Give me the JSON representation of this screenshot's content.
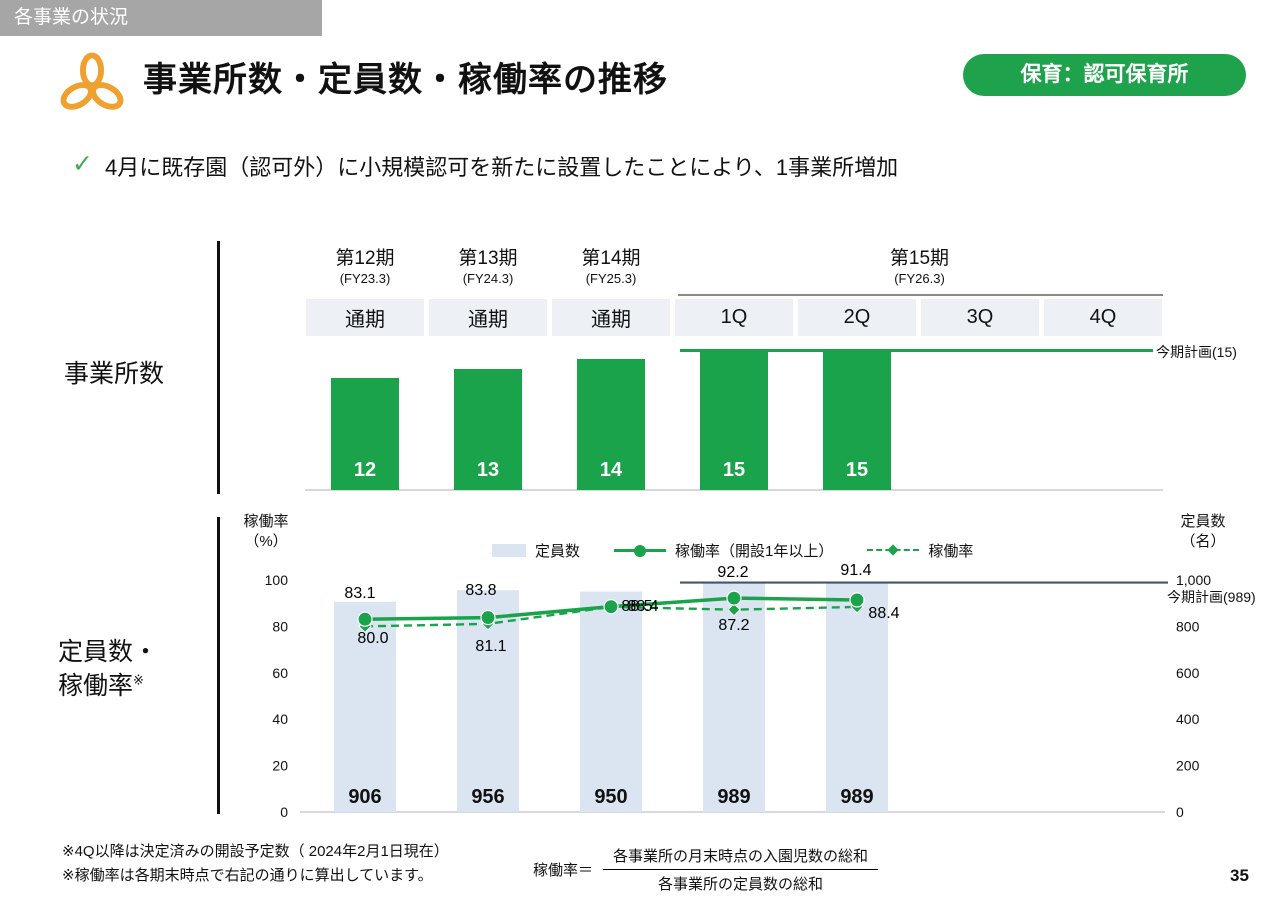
{
  "page": {
    "tag": "各事業の状況",
    "title": "事業所数・定員数・稼働率の推移",
    "badge": "保育：認可保育所",
    "bullet": "4月に既存園（認可外）に小規模認可を新たに設置したことにより、1事業所増加",
    "page_number": "35"
  },
  "colors": {
    "green": "#1aa34a",
    "bar_blue": "#dbe5f2",
    "plan_navy": "#44546a",
    "orange": "#efa02f",
    "tag_gray": "#a6a6a6",
    "check_green": "#3fae49",
    "header_bg": "#edf1f6"
  },
  "periods": [
    {
      "label": "第12期",
      "sub": "(FY23.3)"
    },
    {
      "label": "第13期",
      "sub": "(FY24.3)"
    },
    {
      "label": "第14期",
      "sub": "(FY25.3)"
    },
    {
      "label": "第15期",
      "sub": "(FY26.3)"
    }
  ],
  "columns": [
    "通期",
    "通期",
    "通期",
    "1Q",
    "2Q",
    "3Q",
    "4Q"
  ],
  "sections": {
    "offices": {
      "label": "事業所数"
    },
    "capacity": {
      "label_line1": "定員数・",
      "label_line2": "稼働率",
      "label_sup": "※",
      "left_axis_title": "稼働率",
      "left_axis_unit": "（%）",
      "right_axis_title": "定員数",
      "right_axis_unit": "（名）"
    }
  },
  "legend": [
    "定員数",
    "稼働率（開設1年以上）",
    "稼働率"
  ],
  "chart_data": [
    {
      "type": "bar",
      "title": "事業所数",
      "categories": [
        "第12期 通期",
        "第13期 通期",
        "第14期 通期",
        "第15期 1Q",
        "第15期 2Q",
        "第15期 3Q",
        "第15期 4Q"
      ],
      "values": [
        12,
        13,
        14,
        15,
        15,
        null,
        null
      ],
      "ylim": [
        0,
        15
      ],
      "plan": {
        "label": "今期計画(15)",
        "value": 15
      }
    },
    {
      "type": "combo",
      "title": "定員数・稼働率",
      "categories": [
        "第12期 通期",
        "第13期 通期",
        "第14期 通期",
        "第15期 1Q",
        "第15期 2Q"
      ],
      "series": [
        {
          "name": "定員数",
          "type": "bar",
          "axis": "right",
          "values": [
            906,
            956,
            950,
            989,
            989
          ]
        },
        {
          "name": "稼働率（開設1年以上）",
          "type": "line",
          "style": "solid",
          "axis": "left",
          "values": [
            83.1,
            83.8,
            88.5,
            92.2,
            91.4
          ]
        },
        {
          "name": "稼働率",
          "type": "line",
          "style": "dashed",
          "axis": "left",
          "values": [
            80.0,
            81.1,
            88.4,
            87.2,
            88.4
          ]
        }
      ],
      "left_axis": {
        "label": "稼働率（%）",
        "ticks": [
          0,
          20,
          40,
          60,
          80,
          100
        ],
        "range": [
          0,
          100
        ]
      },
      "right_axis": {
        "label": "定員数（名）",
        "ticks": [
          "0",
          "200",
          "400",
          "600",
          "800",
          "1,000"
        ],
        "tick_values": [
          0,
          200,
          400,
          600,
          800,
          1000
        ],
        "range": [
          0,
          1000
        ]
      },
      "plan": {
        "label": "今期計画(989)",
        "value": 989
      },
      "legend_position": "top"
    }
  ],
  "footnotes": {
    "note1": "※4Q以降は決定済みの開設予定数（ 2024年2月1日現在）",
    "note2": "※稼働率は各期末時点で右記の通りに算出しています。",
    "formula_label": "稼働率＝",
    "numerator": "各事業所の月末時点の入園児数の総和",
    "denominator": "各事業所の定員数の総和"
  }
}
